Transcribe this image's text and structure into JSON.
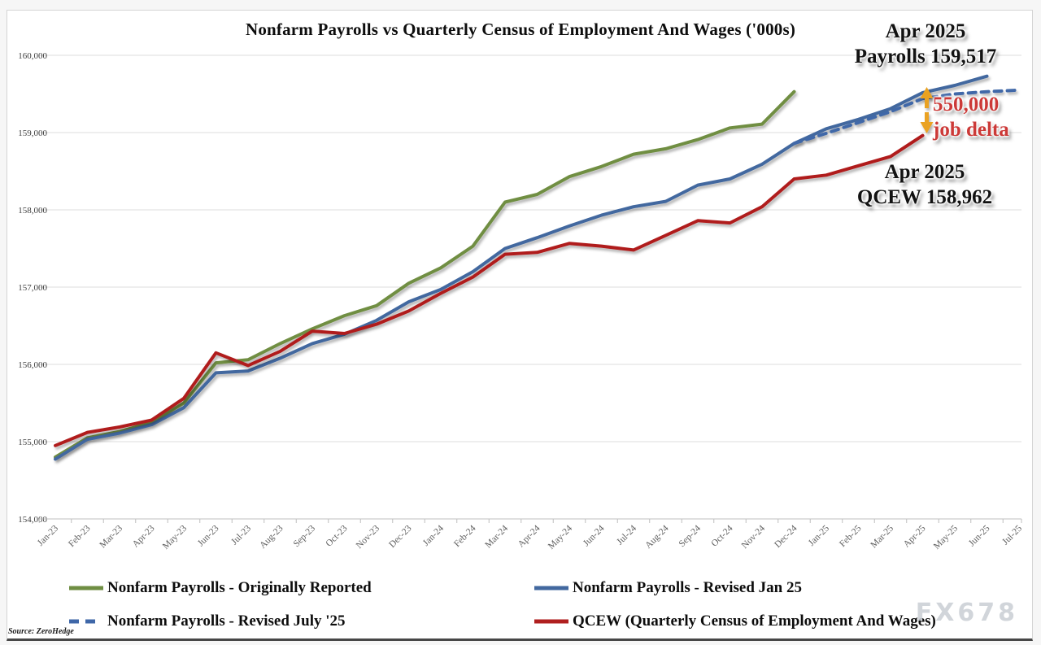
{
  "source": "Source: ZeroHedge",
  "watermark": "FX678",
  "annotations": {
    "payrolls": {
      "line1": "Apr 2025",
      "line2": "Payrolls 159,517"
    },
    "delta": {
      "line1": "550,000",
      "line2": "job delta"
    },
    "qcew": {
      "line1": "Apr 2025",
      "line2": "QCEW 158,962"
    }
  },
  "colors": {
    "green": "#6f8e43",
    "blue_solid": "#42689f",
    "blue_dashed": "#3f67a8",
    "red": "#b01f1f",
    "arrow": "#eaa221",
    "gridline": "#dcdcdc",
    "axis": "#bfbfbf",
    "tick_label": "#5f5f5f",
    "y_label": "#3f3f3f"
  },
  "chart_data": {
    "type": "line",
    "title": "Nonfarm Payrolls vs Quarterly Census of Employment And Wages ('000s)",
    "xlabel": "",
    "ylabel": "",
    "ylim": [
      154000,
      160000
    ],
    "grid": "horizontal",
    "legend_position": "bottom",
    "y_ticks": [
      160000,
      159000,
      158000,
      157000,
      156000,
      155000,
      154000
    ],
    "y_tick_labels": [
      "160,000",
      "159,000",
      "158,000",
      "157,000",
      "156,000",
      "155,000",
      "154,000"
    ],
    "x": [
      "Jan-23",
      "Feb-23",
      "Mar-23",
      "Apr-23",
      "May-23",
      "Jun-23",
      "Jul-23",
      "Aug-23",
      "Sep-23",
      "Oct-23",
      "Nov-23",
      "Dec-23",
      "Jan-24",
      "Feb-24",
      "Mar-24",
      "Apr-24",
      "May-24",
      "Jun-24",
      "Jul-24",
      "Aug-24",
      "Sep-24",
      "Oct-24",
      "Nov-24",
      "Dec-24",
      "Jan-25",
      "Feb-25",
      "Mar-25",
      "Apr-25",
      "May-25",
      "Jun-25",
      "Jul-25"
    ],
    "series": [
      {
        "name": "Nonfarm Payrolls - Originally Reported",
        "style": "solid",
        "color_key": "green",
        "values": [
          154800,
          155050,
          155130,
          155250,
          155500,
          156020,
          156060,
          156270,
          156460,
          156630,
          156760,
          157050,
          157250,
          157530,
          158100,
          158200,
          158430,
          158560,
          158720,
          158790,
          158910,
          159060,
          159110,
          159530,
          null,
          null,
          null,
          null,
          null,
          null,
          null
        ]
      },
      {
        "name": "Nonfarm Payrolls - Revised Jan 25",
        "style": "solid",
        "color_key": "blue_solid",
        "values": [
          154775,
          155030,
          155110,
          155220,
          155440,
          155890,
          155915,
          156080,
          156270,
          156390,
          156570,
          156810,
          156970,
          157200,
          157500,
          157640,
          157790,
          157930,
          158040,
          158110,
          158320,
          158400,
          158590,
          158860,
          159050,
          159170,
          159310,
          159517,
          159610,
          159730,
          null
        ]
      },
      {
        "name": "Nonfarm Payrolls - Revised July '25",
        "style": "dashed",
        "color_key": "blue_dashed",
        "values": [
          null,
          null,
          null,
          null,
          null,
          null,
          null,
          null,
          null,
          null,
          null,
          null,
          null,
          null,
          null,
          null,
          null,
          null,
          null,
          null,
          null,
          null,
          null,
          158860,
          158990,
          159130,
          159270,
          159440,
          159500,
          159530,
          159550
        ]
      },
      {
        "name": "QCEW (Quarterly Census of Employment And Wages)",
        "style": "solid",
        "color_key": "red",
        "values": [
          154950,
          155120,
          155190,
          155280,
          155560,
          156150,
          155985,
          156170,
          156430,
          156400,
          156520,
          156690,
          156920,
          157130,
          157425,
          157450,
          157565,
          157530,
          157480,
          157670,
          157860,
          157830,
          158040,
          158400,
          158450,
          158570,
          158690,
          158962,
          null,
          null,
          null
        ]
      }
    ],
    "annotated_points": [
      {
        "label": "Apr 2025 Payrolls",
        "value": 159517
      },
      {
        "label": "Apr 2025 QCEW",
        "value": 158962
      },
      {
        "label": "job delta",
        "value": 550000
      }
    ]
  }
}
